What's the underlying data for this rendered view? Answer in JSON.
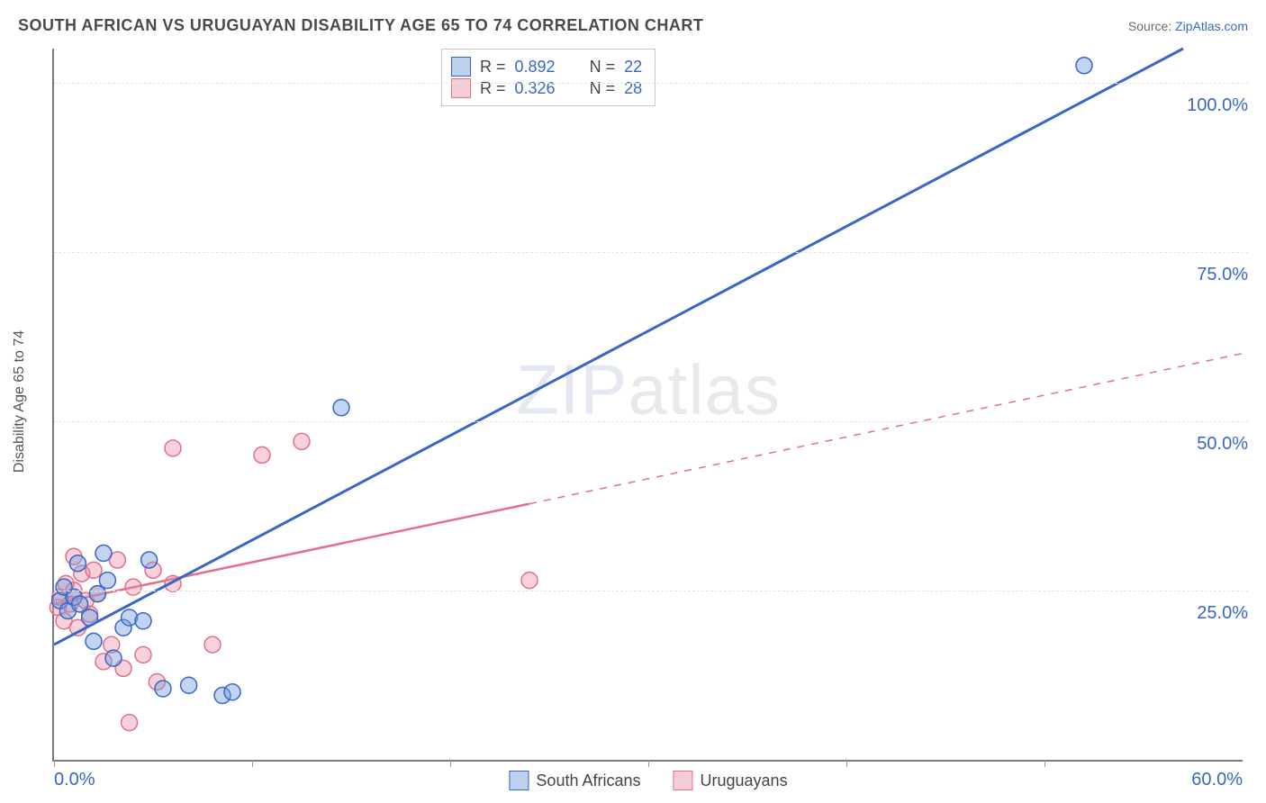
{
  "title": "SOUTH AFRICAN VS URUGUAYAN DISABILITY AGE 65 TO 74 CORRELATION CHART",
  "source_prefix": "Source: ",
  "source_link": "ZipAtlas.com",
  "ylabel": "Disability Age 65 to 74",
  "watermark_a": "ZIP",
  "watermark_b": "atlas",
  "chart": {
    "type": "scatter-correlation",
    "xlim": [
      0,
      60
    ],
    "ylim": [
      0,
      105
    ],
    "x_ticks": [
      0,
      10,
      20,
      30,
      40,
      50
    ],
    "x_tick_labels": {
      "0": "0.0%",
      "60": "60.0%"
    },
    "y_gridlines": [
      25,
      50,
      75,
      100
    ],
    "y_tick_labels": {
      "25": "25.0%",
      "50": "50.0%",
      "75": "75.0%",
      "100": "100.0%"
    },
    "grid_color": "#e4e4e4",
    "axis_color": "#7a7a7a",
    "background_color": "#ffffff",
    "series": [
      {
        "name": "South Africans",
        "key": "south_africans",
        "stroke": "#3a66c4",
        "fill": "#bcd0ef",
        "marker_stroke": "#3a66c4",
        "marker_fill": "rgba(120,160,220,0.45)",
        "marker_r": 9,
        "R": "0.892",
        "N": "22",
        "trend": {
          "x1": 0,
          "y1": 17,
          "x2": 57,
          "y2": 105,
          "solid_until_x": 57,
          "width": 3
        },
        "points": [
          [
            0.3,
            23.5
          ],
          [
            0.5,
            25.5
          ],
          [
            0.7,
            22.0
          ],
          [
            1.0,
            24.0
          ],
          [
            1.2,
            29.0
          ],
          [
            1.3,
            23.0
          ],
          [
            1.8,
            21.0
          ],
          [
            2.0,
            17.5
          ],
          [
            2.5,
            30.5
          ],
          [
            2.7,
            26.5
          ],
          [
            3.5,
            19.5
          ],
          [
            3.8,
            21.0
          ],
          [
            4.5,
            20.5
          ],
          [
            4.8,
            29.5
          ],
          [
            3.0,
            15.0
          ],
          [
            5.5,
            10.5
          ],
          [
            6.8,
            11.0
          ],
          [
            8.5,
            9.5
          ],
          [
            9.0,
            10.0
          ],
          [
            14.5,
            52.0
          ],
          [
            52.0,
            102.5
          ],
          [
            2.2,
            24.5
          ]
        ]
      },
      {
        "name": "Uruguayans",
        "key": "uruguayans",
        "stroke": "#e46f8a",
        "fill": "#f6cdd7",
        "marker_stroke": "#e46f8a",
        "marker_fill": "rgba(235,140,165,0.40)",
        "marker_r": 9,
        "R": "0.326",
        "N": "28",
        "trend": {
          "x1": 0,
          "y1": 23,
          "x2": 60,
          "y2": 60,
          "solid_until_x": 24,
          "width": 2.5
        },
        "points": [
          [
            0.2,
            22.5
          ],
          [
            0.3,
            24.0
          ],
          [
            0.5,
            20.5
          ],
          [
            0.6,
            26.0
          ],
          [
            0.8,
            23.0
          ],
          [
            1.0,
            25.0
          ],
          [
            1.2,
            19.5
          ],
          [
            1.4,
            27.5
          ],
          [
            1.6,
            23.5
          ],
          [
            1.8,
            21.5
          ],
          [
            2.0,
            28.0
          ],
          [
            2.2,
            24.5
          ],
          [
            2.5,
            14.5
          ],
          [
            2.9,
            17.0
          ],
          [
            3.2,
            29.5
          ],
          [
            3.5,
            13.5
          ],
          [
            4.0,
            25.5
          ],
          [
            4.5,
            15.5
          ],
          [
            5.0,
            28.0
          ],
          [
            5.2,
            11.5
          ],
          [
            6.0,
            26.0
          ],
          [
            6.0,
            46.0
          ],
          [
            8.0,
            17.0
          ],
          [
            10.5,
            45.0
          ],
          [
            12.5,
            47.0
          ],
          [
            24.0,
            26.5
          ],
          [
            3.8,
            5.5
          ],
          [
            1.0,
            30.0
          ]
        ]
      }
    ],
    "legend_top": {
      "R_label": "R =",
      "N_label": "N ="
    }
  }
}
